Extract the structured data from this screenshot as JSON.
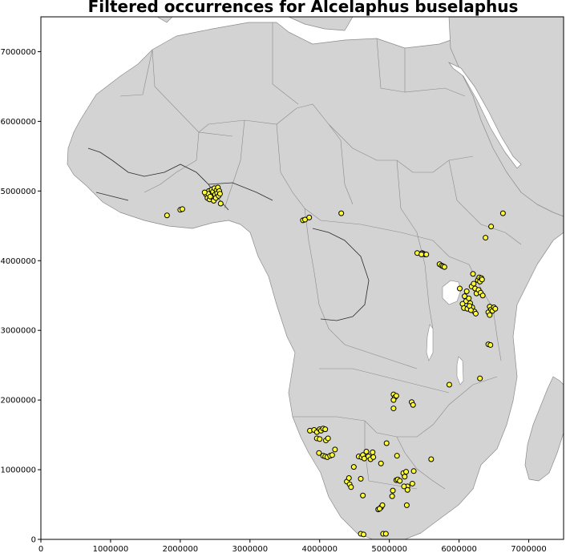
{
  "chart_data": {
    "type": "scatter",
    "title": "Filtered occurrences for Alcelaphus buselaphus",
    "xlim": [
      0,
      7500000
    ],
    "ylim": [
      0,
      7500000
    ],
    "xticks": [
      0,
      1000000,
      2000000,
      3000000,
      4000000,
      5000000,
      6000000,
      7000000
    ],
    "yticks": [
      0,
      1000000,
      2000000,
      3000000,
      4000000,
      5000000,
      6000000,
      7000000
    ],
    "xtick_labels": [
      "0",
      "1000000",
      "2000000",
      "3000000",
      "4000000",
      "5000000",
      "6000000",
      "7000000"
    ],
    "ytick_labels": [
      "0",
      "1000000",
      "2000000",
      "3000000",
      "4000000",
      "5000000",
      "6000000",
      "7000000"
    ],
    "grid": false,
    "basemap": "Africa country outlines",
    "colors": {
      "marker_fill": "#ffff33",
      "marker_edge": "#000000",
      "land": "#d3d3d3",
      "borders": "#8a8a8a"
    },
    "points": [
      [
        1810000,
        4650000
      ],
      [
        2000000,
        4730000
      ],
      [
        2030000,
        4740000
      ],
      [
        2370000,
        4950000
      ],
      [
        2390000,
        4900000
      ],
      [
        2410000,
        5000000
      ],
      [
        2420000,
        4880000
      ],
      [
        2440000,
        4960000
      ],
      [
        2450000,
        5020000
      ],
      [
        2460000,
        4910000
      ],
      [
        2470000,
        4990000
      ],
      [
        2480000,
        4860000
      ],
      [
        2490000,
        5040000
      ],
      [
        2500000,
        4950000
      ],
      [
        2510000,
        4900000
      ],
      [
        2520000,
        5010000
      ],
      [
        2530000,
        4970000
      ],
      [
        2540000,
        5050000
      ],
      [
        2550000,
        4930000
      ],
      [
        2560000,
        5000000
      ],
      [
        2570000,
        4960000
      ],
      [
        2580000,
        4820000
      ],
      [
        2400000,
        4960000
      ],
      [
        2430000,
        4920000
      ],
      [
        2350000,
        4980000
      ],
      [
        3760000,
        4580000
      ],
      [
        3790000,
        4590000
      ],
      [
        3850000,
        4620000
      ],
      [
        4310000,
        4680000
      ],
      [
        5400000,
        4110000
      ],
      [
        5470000,
        4110000
      ],
      [
        5490000,
        4100000
      ],
      [
        5510000,
        4090000
      ],
      [
        5530000,
        4090000
      ],
      [
        5460000,
        4090000
      ],
      [
        5720000,
        3950000
      ],
      [
        5750000,
        3930000
      ],
      [
        5770000,
        3920000
      ],
      [
        5790000,
        3910000
      ],
      [
        6010000,
        3600000
      ],
      [
        6080000,
        3490000
      ],
      [
        6100000,
        3420000
      ],
      [
        6110000,
        3560000
      ],
      [
        6140000,
        3460000
      ],
      [
        6160000,
        3390000
      ],
      [
        6180000,
        3630000
      ],
      [
        6190000,
        3330000
      ],
      [
        6200000,
        3810000
      ],
      [
        6210000,
        3670000
      ],
      [
        6220000,
        3270000
      ],
      [
        6230000,
        3600000
      ],
      [
        6240000,
        3240000
      ],
      [
        6250000,
        3530000
      ],
      [
        6270000,
        3720000
      ],
      [
        6280000,
        3580000
      ],
      [
        6290000,
        3760000
      ],
      [
        6300000,
        3700000
      ],
      [
        6310000,
        3540000
      ],
      [
        6320000,
        3750000
      ],
      [
        6330000,
        3730000
      ],
      [
        6340000,
        3500000
      ],
      [
        6050000,
        3380000
      ],
      [
        6070000,
        3320000
      ],
      [
        6120000,
        3310000
      ],
      [
        6150000,
        3350000
      ],
      [
        6170000,
        3290000
      ],
      [
        6380000,
        4330000
      ],
      [
        6460000,
        4490000
      ],
      [
        6630000,
        4680000
      ],
      [
        6420000,
        3260000
      ],
      [
        6440000,
        3340000
      ],
      [
        6460000,
        3300000
      ],
      [
        6480000,
        3280000
      ],
      [
        6500000,
        3330000
      ],
      [
        6520000,
        3310000
      ],
      [
        6440000,
        3220000
      ],
      [
        6420000,
        2800000
      ],
      [
        6450000,
        2790000
      ],
      [
        6300000,
        2310000
      ],
      [
        5860000,
        2220000
      ],
      [
        5060000,
        2080000
      ],
      [
        5080000,
        2040000
      ],
      [
        5100000,
        2060000
      ],
      [
        5060000,
        2000000
      ],
      [
        5060000,
        1880000
      ],
      [
        5320000,
        1970000
      ],
      [
        5340000,
        1930000
      ],
      [
        3860000,
        1560000
      ],
      [
        3920000,
        1570000
      ],
      [
        3960000,
        1540000
      ],
      [
        4000000,
        1580000
      ],
      [
        4020000,
        1560000
      ],
      [
        4050000,
        1590000
      ],
      [
        4080000,
        1580000
      ],
      [
        3960000,
        1450000
      ],
      [
        4000000,
        1440000
      ],
      [
        4090000,
        1420000
      ],
      [
        4120000,
        1450000
      ],
      [
        4220000,
        1290000
      ],
      [
        3990000,
        1240000
      ],
      [
        4050000,
        1200000
      ],
      [
        4080000,
        1190000
      ],
      [
        4110000,
        1180000
      ],
      [
        4150000,
        1200000
      ],
      [
        4180000,
        1210000
      ],
      [
        4490000,
        1040000
      ],
      [
        4390000,
        830000
      ],
      [
        4420000,
        880000
      ],
      [
        4430000,
        790000
      ],
      [
        4450000,
        750000
      ],
      [
        4590000,
        870000
      ],
      [
        4620000,
        630000
      ],
      [
        4560000,
        1190000
      ],
      [
        4600000,
        1180000
      ],
      [
        4620000,
        1210000
      ],
      [
        4640000,
        1160000
      ],
      [
        4670000,
        1260000
      ],
      [
        4700000,
        1190000
      ],
      [
        4730000,
        1150000
      ],
      [
        4760000,
        1250000
      ],
      [
        4770000,
        1180000
      ],
      [
        4880000,
        1090000
      ],
      [
        4960000,
        1380000
      ],
      [
        5110000,
        1200000
      ],
      [
        5100000,
        850000
      ],
      [
        5120000,
        860000
      ],
      [
        5150000,
        840000
      ],
      [
        5200000,
        950000
      ],
      [
        5220000,
        900000
      ],
      [
        5240000,
        970000
      ],
      [
        5260000,
        760000
      ],
      [
        5260000,
        710000
      ],
      [
        5210000,
        760000
      ],
      [
        5330000,
        800000
      ],
      [
        5350000,
        980000
      ],
      [
        5050000,
        700000
      ],
      [
        5040000,
        620000
      ],
      [
        5250000,
        490000
      ],
      [
        5600000,
        1150000
      ],
      [
        4880000,
        460000
      ],
      [
        4900000,
        490000
      ],
      [
        4840000,
        430000
      ],
      [
        4860000,
        440000
      ],
      [
        4590000,
        80000
      ],
      [
        4630000,
        70000
      ],
      [
        4910000,
        80000
      ],
      [
        4950000,
        80000
      ]
    ]
  }
}
